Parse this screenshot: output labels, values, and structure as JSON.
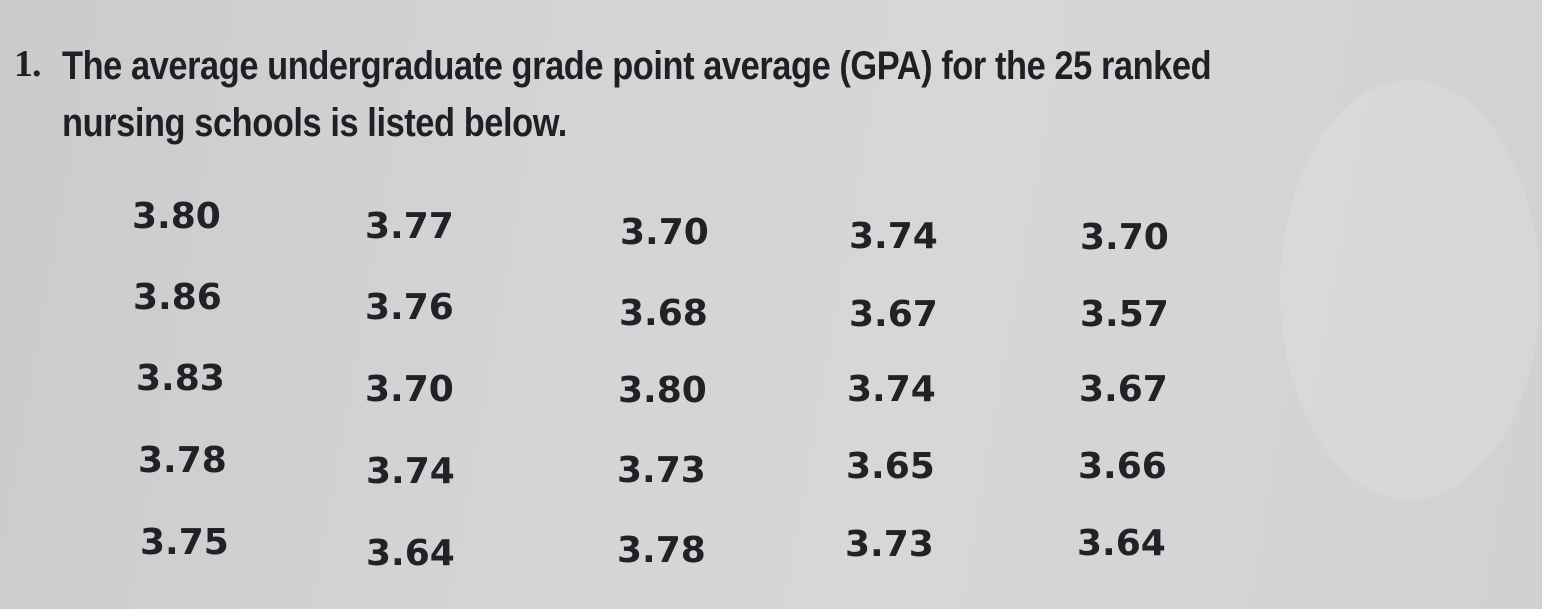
{
  "question": {
    "number": "1.",
    "line1": "The average undergraduate grade point average (GPA) for the 25 ranked",
    "line2": "nursing schools is listed below."
  },
  "gpa_table": {
    "rows": [
      [
        "3.80",
        "3.77",
        "3.70",
        "3.74",
        "3.70"
      ],
      [
        "3.86",
        "3.76",
        "3.68",
        "3.67",
        "3.57"
      ],
      [
        "3.83",
        "3.70",
        "3.80",
        "3.74",
        "3.67"
      ],
      [
        "3.78",
        "3.74",
        "3.73",
        "3.65",
        "3.66"
      ],
      [
        "3.75",
        "3.64",
        "3.78",
        "3.73",
        "3.64"
      ]
    ]
  }
}
